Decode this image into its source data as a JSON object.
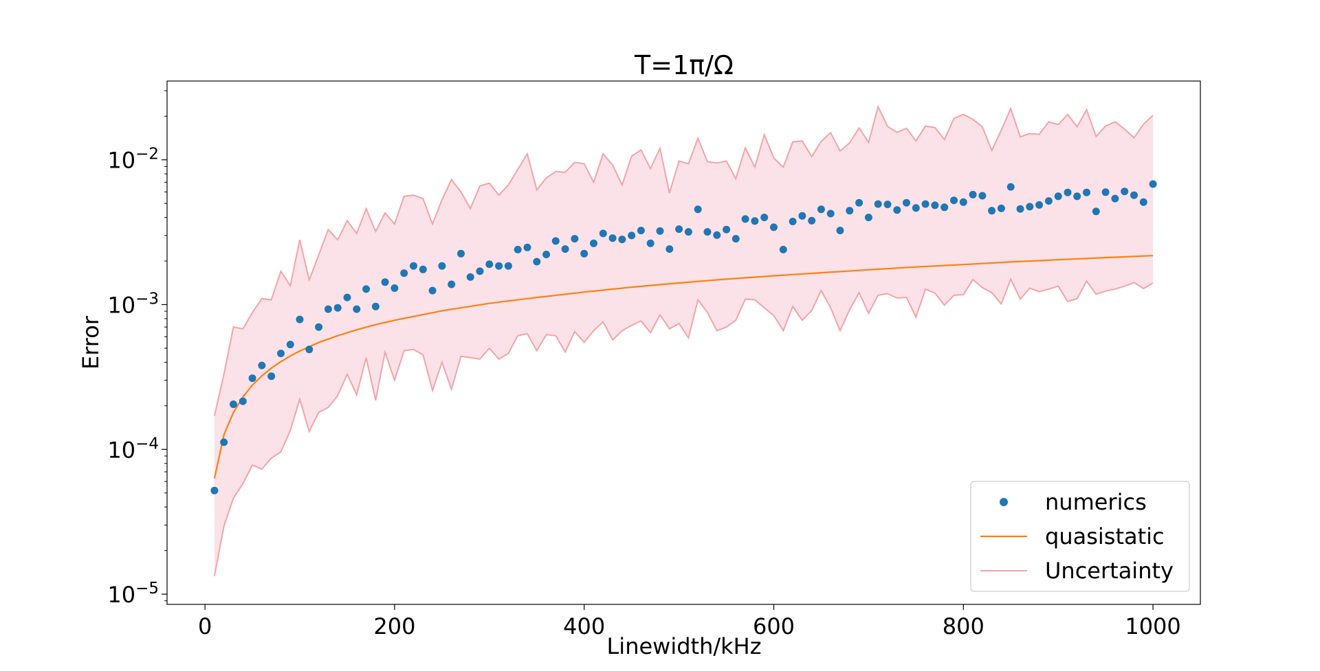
{
  "colors": {
    "numerics": "#1f77b4",
    "quasistatic": "#ff7f0e",
    "uncertainty_line": "#f4a3a8",
    "uncertainty_fill": "#f9d6de"
  },
  "chart_data": {
    "type": "scatter",
    "title": "T=1π/Ω",
    "xlabel": "Linewidth/kHz",
    "ylabel": "Error",
    "xlim": [
      -40,
      1050
    ],
    "ylim": [
      8.5e-06,
      0.035
    ],
    "yscale": "log",
    "grid": false,
    "legend_position": "lower-right",
    "x_ticks": [
      0,
      200,
      400,
      600,
      800,
      1000
    ],
    "x_tick_labels": [
      "0",
      "200",
      "400",
      "600",
      "800",
      "1000"
    ],
    "y_ticks": [
      {
        "value": 1e-05,
        "base": "10",
        "exp": "−5"
      },
      {
        "value": 0.0001,
        "base": "10",
        "exp": "−4"
      },
      {
        "value": 0.001,
        "base": "10",
        "exp": "−3"
      },
      {
        "value": 0.01,
        "base": "10",
        "exp": "−2"
      }
    ],
    "series": [
      {
        "name": "numerics",
        "kind": "scatter",
        "x": [
          10,
          20,
          30,
          40,
          50,
          60,
          70,
          80,
          90,
          100,
          110,
          120,
          130,
          140,
          150,
          160,
          170,
          180,
          190,
          200,
          210,
          220,
          230,
          240,
          250,
          260,
          270,
          280,
          290,
          300,
          310,
          320,
          330,
          340,
          350,
          360,
          370,
          380,
          390,
          400,
          410,
          420,
          430,
          440,
          450,
          460,
          470,
          480,
          490,
          500,
          510,
          520,
          530,
          540,
          550,
          560,
          570,
          580,
          590,
          600,
          610,
          620,
          630,
          640,
          650,
          660,
          670,
          680,
          690,
          700,
          710,
          720,
          730,
          740,
          750,
          760,
          770,
          780,
          790,
          800,
          810,
          820,
          830,
          840,
          850,
          860,
          870,
          880,
          890,
          900,
          910,
          920,
          930,
          940,
          950,
          960,
          970,
          980,
          990,
          1000
        ],
        "y": [
          5.2e-05,
          0.000112,
          0.000205,
          0.000215,
          0.00031,
          0.00038,
          0.00032,
          0.00046,
          0.00053,
          0.00079,
          0.00049,
          0.0007,
          0.00093,
          0.00095,
          0.00112,
          0.00093,
          0.00128,
          0.00097,
          0.00143,
          0.0013,
          0.00165,
          0.00185,
          0.00175,
          0.00125,
          0.00185,
          0.00138,
          0.00225,
          0.00155,
          0.0017,
          0.0019,
          0.00185,
          0.00185,
          0.0024,
          0.00248,
          0.00198,
          0.00222,
          0.00275,
          0.00242,
          0.00285,
          0.00225,
          0.00265,
          0.0031,
          0.00288,
          0.00282,
          0.003,
          0.00325,
          0.00265,
          0.00322,
          0.00242,
          0.00332,
          0.00318,
          0.00455,
          0.00318,
          0.00302,
          0.0033,
          0.00285,
          0.0039,
          0.00378,
          0.004,
          0.00342,
          0.0024,
          0.00375,
          0.0041,
          0.0038,
          0.00455,
          0.00425,
          0.00325,
          0.00445,
          0.00505,
          0.004,
          0.00495,
          0.00492,
          0.0045,
          0.00505,
          0.00465,
          0.00495,
          0.00485,
          0.0047,
          0.00525,
          0.0051,
          0.00575,
          0.00565,
          0.00445,
          0.00462,
          0.0065,
          0.00458,
          0.00475,
          0.00488,
          0.0052,
          0.0056,
          0.00595,
          0.0056,
          0.00595,
          0.0044,
          0.00598,
          0.0054,
          0.00605,
          0.0057,
          0.0051,
          0.0068
        ]
      },
      {
        "name": "quasistatic",
        "kind": "line",
        "x": [
          10,
          20,
          30,
          40,
          50,
          60,
          70,
          80,
          90,
          100,
          120,
          140,
          160,
          180,
          200,
          250,
          300,
          350,
          400,
          450,
          500,
          550,
          600,
          650,
          700,
          750,
          800,
          850,
          900,
          950,
          1000
        ],
        "y": [
          6.3e-05,
          0.000126,
          0.00018,
          0.00023,
          0.000278,
          0.000322,
          0.000364,
          0.000404,
          0.000442,
          0.000478,
          0.000547,
          0.00061,
          0.00067,
          0.000727,
          0.00078,
          0.000905,
          0.00102,
          0.00112,
          0.00122,
          0.00132,
          0.00141,
          0.0015,
          0.00158,
          0.00166,
          0.00174,
          0.00182,
          0.00189,
          0.00197,
          0.00204,
          0.00211,
          0.00218
        ]
      },
      {
        "name": "Uncertainty",
        "kind": "band",
        "x": [
          10,
          20,
          30,
          40,
          50,
          60,
          70,
          80,
          90,
          100,
          110,
          120,
          130,
          140,
          150,
          160,
          170,
          180,
          190,
          200,
          210,
          220,
          230,
          240,
          250,
          260,
          270,
          280,
          290,
          300,
          310,
          320,
          330,
          340,
          350,
          360,
          370,
          380,
          390,
          400,
          410,
          420,
          430,
          440,
          450,
          460,
          470,
          480,
          490,
          500,
          510,
          520,
          530,
          540,
          550,
          560,
          570,
          580,
          590,
          600,
          610,
          620,
          630,
          640,
          650,
          660,
          670,
          680,
          690,
          700,
          710,
          720,
          730,
          740,
          750,
          760,
          770,
          780,
          790,
          800,
          810,
          820,
          830,
          840,
          850,
          860,
          870,
          880,
          890,
          900,
          910,
          920,
          930,
          940,
          950,
          960,
          970,
          980,
          990,
          1000
        ],
        "upper": [
          0.00017,
          0.00033,
          0.0007,
          0.00068,
          0.00088,
          0.0011,
          0.00108,
          0.0017,
          0.00135,
          0.0028,
          0.00148,
          0.0022,
          0.0033,
          0.0028,
          0.0038,
          0.0031,
          0.0046,
          0.0032,
          0.0043,
          0.0036,
          0.0056,
          0.0057,
          0.0054,
          0.0036,
          0.0053,
          0.0073,
          0.006,
          0.0046,
          0.0066,
          0.0069,
          0.0057,
          0.0067,
          0.0086,
          0.011,
          0.0062,
          0.0075,
          0.0083,
          0.0082,
          0.0096,
          0.0094,
          0.007,
          0.011,
          0.0092,
          0.0067,
          0.0106,
          0.0117,
          0.0087,
          0.012,
          0.0059,
          0.0098,
          0.0094,
          0.0141,
          0.0097,
          0.0095,
          0.0098,
          0.0074,
          0.0121,
          0.0089,
          0.0149,
          0.0103,
          0.0089,
          0.0133,
          0.0135,
          0.0105,
          0.0134,
          0.0154,
          0.0115,
          0.0131,
          0.0166,
          0.0132,
          0.0233,
          0.017,
          0.0155,
          0.0165,
          0.0135,
          0.0171,
          0.0167,
          0.0138,
          0.0193,
          0.0206,
          0.019,
          0.0169,
          0.0116,
          0.016,
          0.0226,
          0.0144,
          0.0152,
          0.015,
          0.0183,
          0.0175,
          0.0206,
          0.0169,
          0.0222,
          0.0145,
          0.0171,
          0.0183,
          0.0163,
          0.0142,
          0.0176,
          0.0203
        ],
        "lower": [
          1.33e-05,
          2.95e-05,
          4.6e-05,
          5.8e-05,
          7.8e-05,
          7.3e-05,
          8.7e-05,
          9.6e-05,
          0.000135,
          0.000222,
          0.000133,
          0.00018,
          0.000195,
          0.000235,
          0.00033,
          0.000238,
          0.00043,
          0.000218,
          0.00047,
          0.0003,
          0.00048,
          0.00049,
          0.00045,
          0.000255,
          0.0004,
          0.00026,
          0.00044,
          0.00043,
          0.00042,
          0.0005,
          0.00042,
          0.00046,
          0.00061,
          0.00063,
          0.00048,
          0.00062,
          0.00061,
          0.00047,
          0.00065,
          0.00055,
          0.00066,
          0.00076,
          0.00057,
          0.00066,
          0.00072,
          0.00077,
          0.00064,
          0.00085,
          0.00068,
          0.00074,
          0.00059,
          0.00108,
          0.00088,
          0.00066,
          0.0007,
          0.00078,
          0.00109,
          0.00108,
          0.00095,
          0.00084,
          0.00066,
          0.00097,
          0.00078,
          0.00091,
          0.00125,
          0.00095,
          0.00066,
          0.00092,
          0.00121,
          0.00087,
          0.00116,
          0.00119,
          0.00111,
          0.00112,
          0.00082,
          0.00128,
          0.0012,
          0.00099,
          0.00116,
          0.00117,
          0.00149,
          0.00131,
          0.00121,
          0.00101,
          0.0015,
          0.00109,
          0.0013,
          0.00123,
          0.00128,
          0.00134,
          0.00105,
          0.0011,
          0.00145,
          0.00118,
          0.00124,
          0.00128,
          0.00134,
          0.00142,
          0.00129,
          0.00141
        ]
      }
    ]
  }
}
